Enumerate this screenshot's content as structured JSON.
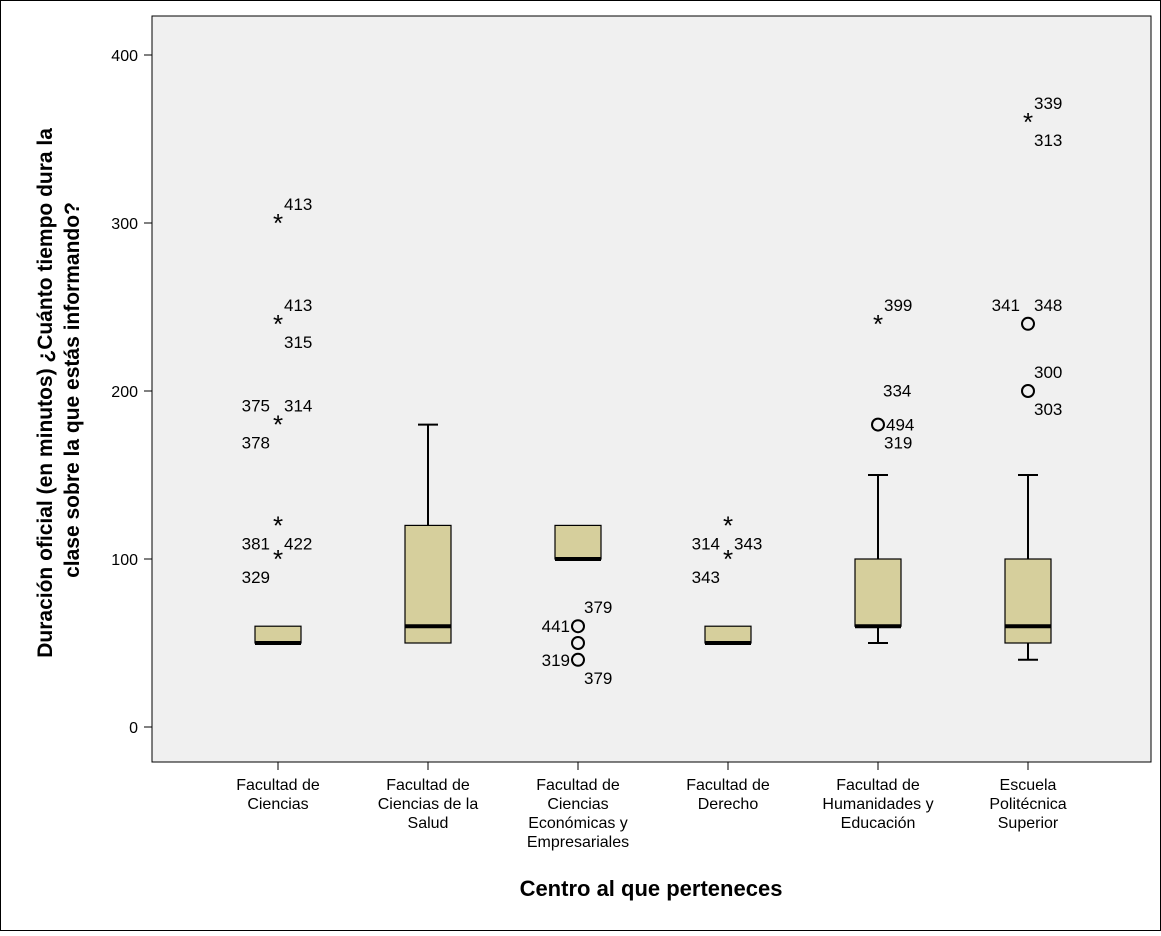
{
  "chart_data": {
    "type": "box",
    "xlabel": "Centro al que perteneces",
    "ylabel_lines": [
      "Duración oficial (en minutos) ¿Cuánto tiempo dura la",
      "clase sobre la que estás informando?"
    ],
    "ylim": [
      -20,
      420
    ],
    "yticks": [
      0,
      100,
      200,
      300,
      400
    ],
    "grid": false,
    "colors": {
      "box_fill": "#d6cf9c",
      "plot_background": "#f0f0f0",
      "stroke": "#000000"
    },
    "categories": [
      {
        "label_lines": [
          "Facultad de",
          "Ciencias"
        ],
        "whisker_low": 50,
        "q1": 50,
        "median": 50,
        "q3": 60,
        "whisker_high": 60,
        "outliers": [
          {
            "value": 300,
            "marker": "star",
            "labels": [
              {
                "text": "413",
                "pos": "above-right"
              }
            ]
          },
          {
            "value": 240,
            "marker": "star",
            "labels": [
              {
                "text": "413",
                "pos": "above-right"
              },
              {
                "text": "315",
                "pos": "below-right"
              }
            ]
          },
          {
            "value": 180,
            "marker": "star",
            "labels": [
              {
                "text": "375",
                "pos": "above-left"
              },
              {
                "text": "314",
                "pos": "above-right"
              },
              {
                "text": "378",
                "pos": "below-left"
              }
            ]
          },
          {
            "value": 120,
            "marker": "star",
            "labels": [
              {
                "text": "381",
                "pos": "below-left"
              },
              {
                "text": "422",
                "pos": "below-right"
              }
            ]
          },
          {
            "value": 100,
            "marker": "star",
            "labels": [
              {
                "text": "329",
                "pos": "below-left"
              }
            ]
          }
        ]
      },
      {
        "label_lines": [
          "Facultad de",
          "Ciencias de la",
          "Salud"
        ],
        "whisker_low": 50,
        "q1": 50,
        "median": 60,
        "q3": 120,
        "whisker_high": 180,
        "outliers": []
      },
      {
        "label_lines": [
          "Facultad de",
          "Ciencias",
          "Económicas y",
          "Empresariales"
        ],
        "whisker_low": 100,
        "q1": 100,
        "median": 100,
        "q3": 120,
        "whisker_high": 120,
        "outliers": [
          {
            "value": 60,
            "marker": "circle",
            "labels": [
              {
                "text": "441",
                "pos": "left"
              },
              {
                "text": "379",
                "pos": "above-right"
              }
            ]
          },
          {
            "value": 50,
            "marker": "circle",
            "labels": []
          },
          {
            "value": 40,
            "marker": "circle",
            "labels": [
              {
                "text": "319",
                "pos": "left"
              },
              {
                "text": "379",
                "pos": "below-right"
              }
            ]
          }
        ]
      },
      {
        "label_lines": [
          "Facultad de",
          "Derecho"
        ],
        "whisker_low": 50,
        "q1": 50,
        "median": 50,
        "q3": 60,
        "whisker_high": 60,
        "outliers": [
          {
            "value": 120,
            "marker": "star",
            "labels": [
              {
                "text": "314",
                "pos": "below-left"
              },
              {
                "text": "343",
                "pos": "below-right"
              }
            ]
          },
          {
            "value": 100,
            "marker": "star",
            "labels": [
              {
                "text": "343",
                "pos": "below-left"
              }
            ]
          }
        ]
      },
      {
        "label_lines": [
          "Facultad de",
          "Humanidades y",
          "Educación"
        ],
        "whisker_low": 50,
        "q1": 60,
        "median": 60,
        "q3": 100,
        "whisker_high": 150,
        "outliers": [
          {
            "value": 240,
            "marker": "star",
            "labels": [
              {
                "text": "399",
                "pos": "above-right"
              }
            ]
          },
          {
            "value": 180,
            "marker": "circle",
            "labels": [
              {
                "text": "334",
                "pos": "above-right-far"
              },
              {
                "text": "494",
                "pos": "right"
              },
              {
                "text": "319",
                "pos": "below-right"
              }
            ]
          }
        ]
      },
      {
        "label_lines": [
          "Escuela",
          "Politécnica",
          "Superior"
        ],
        "whisker_low": 40,
        "q1": 50,
        "median": 60,
        "q3": 100,
        "whisker_high": 150,
        "outliers": [
          {
            "value": 360,
            "marker": "star",
            "labels": [
              {
                "text": "339",
                "pos": "above-right"
              },
              {
                "text": "313",
                "pos": "below-right"
              }
            ]
          },
          {
            "value": 240,
            "marker": "circle",
            "labels": [
              {
                "text": "341",
                "pos": "above-left"
              },
              {
                "text": "348",
                "pos": "above-right"
              }
            ]
          },
          {
            "value": 200,
            "marker": "circle",
            "labels": [
              {
                "text": "300",
                "pos": "above-right"
              },
              {
                "text": "303",
                "pos": "below-right"
              }
            ]
          }
        ]
      }
    ]
  }
}
